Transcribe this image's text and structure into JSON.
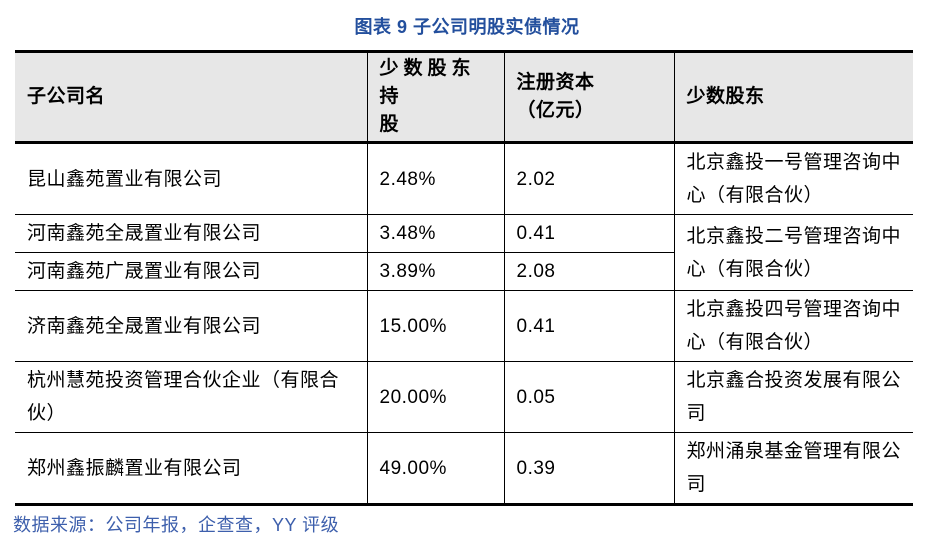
{
  "title": "图表 9 子公司明股实债情况",
  "table": {
    "headers": [
      [
        "子公司名"
      ],
      [
        "少数股东持",
        "股"
      ],
      [
        "注册资本",
        "（亿元）"
      ],
      [
        "少数股东"
      ]
    ],
    "rows": [
      {
        "name": "昆山鑫苑置业有限公司",
        "stake": "2.48%",
        "capital": "2.02",
        "shareholder": "北京鑫投一号管理咨询中心（有限合伙）"
      },
      {
        "name": "河南鑫苑全晟置业有限公司",
        "stake": "3.48%",
        "capital": "0.41",
        "shareholder": "北京鑫投二号管理咨询中心（有限合伙）"
      },
      {
        "name": "河南鑫苑广晟置业有限公司",
        "stake": "3.89%",
        "capital": "2.08"
      },
      {
        "name": "济南鑫苑全晟置业有限公司",
        "stake": "15.00%",
        "capital": "0.41",
        "shareholder": "北京鑫投四号管理咨询中心（有限合伙）"
      },
      {
        "name": "杭州慧苑投资管理合伙企业（有限合伙）",
        "stake": "20.00%",
        "capital": "0.05",
        "shareholder": "北京鑫合投资发展有限公司"
      },
      {
        "name": "郑州鑫振麟置业有限公司",
        "stake": "49.00%",
        "capital": "0.39",
        "shareholder": "郑州涌泉基金管理有限公司"
      }
    ]
  },
  "source": "数据来源：公司年报，企查查，YY 评级",
  "colors": {
    "title_blue": "#234f9d",
    "source_blue": "#3d5fac",
    "header_bg": "#e7e7e7",
    "border": "#000000"
  }
}
